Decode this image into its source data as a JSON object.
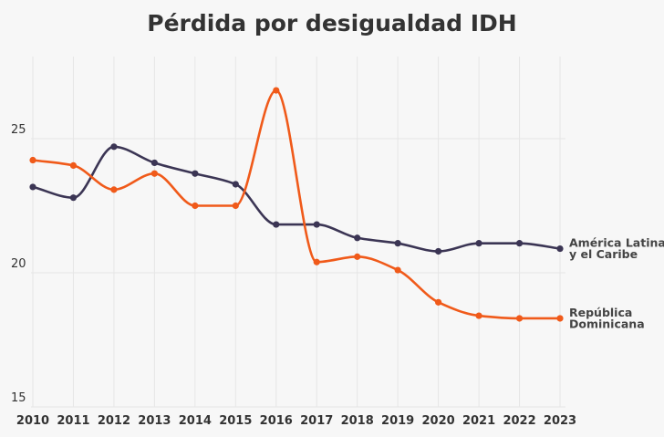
{
  "chart_data": {
    "type": "line",
    "title": "Pérdida por desigualdad IDH",
    "xlabel": "",
    "ylabel": "",
    "x": [
      "2010",
      "2011",
      "2012",
      "2013",
      "2014",
      "2015",
      "2016",
      "2017",
      "2018",
      "2019",
      "2020",
      "2021",
      "2022",
      "2023"
    ],
    "ylim": [
      15,
      28.2
    ],
    "yticks": [
      "15",
      "20",
      "25"
    ],
    "grid": true,
    "series": [
      {
        "name": "América Latina y el Caribe",
        "label_lines": [
          "América Latina",
          "y el Caribe"
        ],
        "color": "#3b3554",
        "values": [
          23.2,
          22.8,
          24.7,
          24.1,
          23.7,
          23.3,
          21.8,
          21.8,
          21.3,
          21.1,
          20.8,
          21.1,
          21.1,
          20.9
        ]
      },
      {
        "name": "República Dominicana",
        "label_lines": [
          "República",
          "Dominicana"
        ],
        "color": "#f05a1a",
        "values": [
          24.2,
          24.0,
          23.1,
          23.7,
          22.5,
          22.5,
          26.8,
          20.4,
          20.6,
          20.1,
          18.9,
          18.4,
          18.3,
          18.3
        ]
      }
    ]
  }
}
